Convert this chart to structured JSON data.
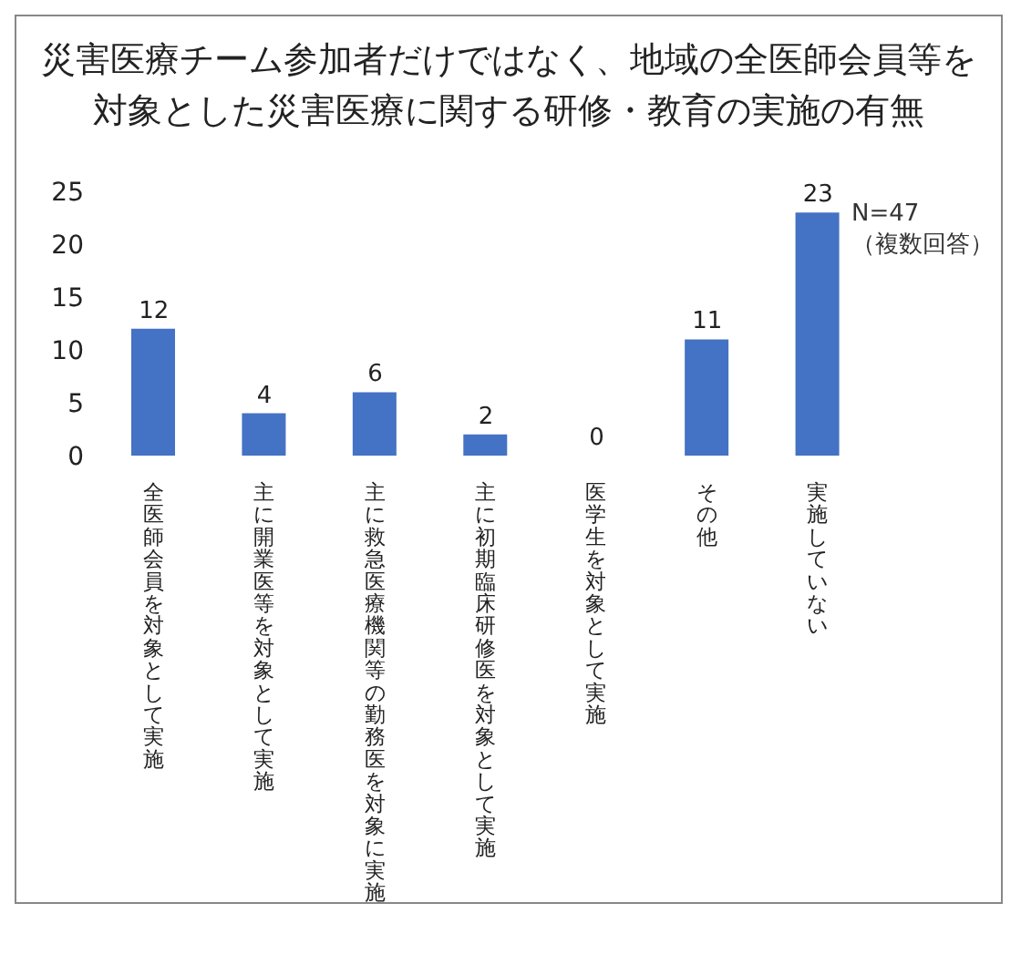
{
  "chart_data": {
    "type": "bar",
    "title": "災害医療チーム参加者だけではなく、地域の全医師会員等を対象とした災害医療に関する研修・教育の実施の有無",
    "categories": [
      "全医師会員を対象として実施",
      "主に開業医等を対象として実施",
      "主に救急医療機関等の勤務医を対象に実施",
      "主に初期臨床研修医を対象として実施",
      "医学生を対象として実施",
      "その他",
      "実施していない"
    ],
    "values": [
      12,
      4,
      6,
      2,
      0,
      11,
      23
    ],
    "color": "#4472c4",
    "data_labels": true,
    "ylim": [
      0,
      25
    ],
    "yticks": [
      0,
      5,
      10,
      15,
      20,
      25
    ],
    "grid": false,
    "annotations": [
      "N=47",
      "（複数回答）"
    ]
  }
}
